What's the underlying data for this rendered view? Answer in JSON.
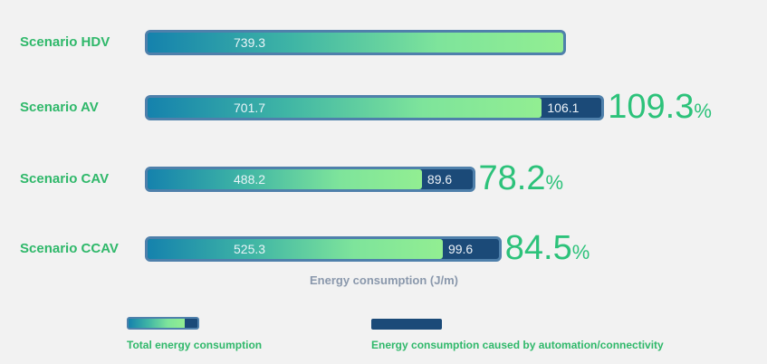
{
  "chart_data": {
    "type": "bar",
    "orientation": "horizontal",
    "stacked": true,
    "xlabel": "Energy consumption (J/m)",
    "categories": [
      "Scenario HDV",
      "Scenario AV",
      "Scenario CAV",
      "Scenario CCAV"
    ],
    "series": [
      {
        "name": "Total energy consumption",
        "values": [
          739.3,
          701.7,
          488.2,
          525.3
        ],
        "color": "#7ee49b"
      },
      {
        "name": "Energy consumption caused by automation/connectivity",
        "values": [
          null,
          106.1,
          89.6,
          99.6
        ],
        "color": "#1b4a78"
      }
    ],
    "value_labels": {
      "total": [
        "739.3",
        "701.7",
        "488.2",
        "525.3"
      ],
      "extra": [
        "",
        "106.1",
        "89.6",
        "99.6"
      ]
    },
    "percentages": [
      {
        "num": "",
        "sign": ""
      },
      {
        "num": "109.3",
        "sign": "%"
      },
      {
        "num": "78.2",
        "sign": "%"
      },
      {
        "num": "84.5",
        "sign": "%"
      }
    ],
    "legend": {
      "position": "bottom",
      "items": [
        "Total energy consumption",
        "Energy consumption caused by automation/connectivity"
      ]
    }
  }
}
